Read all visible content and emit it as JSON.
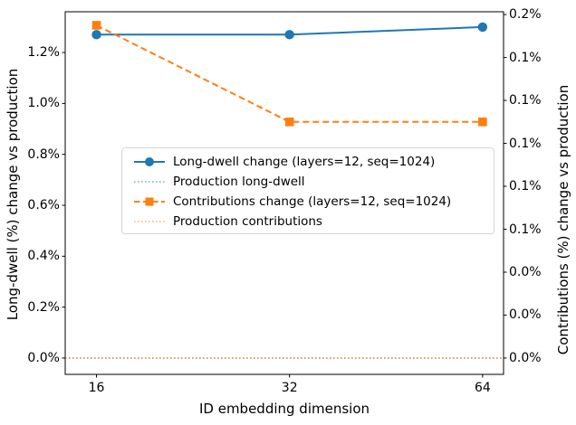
{
  "chart_data": {
    "type": "line",
    "title": "",
    "xlabel": "ID embedding dimension",
    "ylabel_left": "Long-dwell (%) change vs production",
    "ylabel_right": "Contributions (%) change vs production",
    "grid": false,
    "legend_position": "center-left",
    "x_axis": {
      "scale": "log2",
      "lim": [
        14.3,
        69.0
      ],
      "ticks": [
        16,
        32,
        64
      ],
      "tick_labels": [
        "16",
        "32",
        "64"
      ]
    },
    "y_axis_left": {
      "lim": [
        -0.064,
        1.36
      ],
      "ticks": [
        0.0,
        0.2,
        0.4,
        0.6,
        0.8,
        1.0,
        1.2
      ],
      "tick_labels": [
        "0.0%",
        "0.2%",
        "0.4%",
        "0.6%",
        "0.8%",
        "1.0%",
        "1.2%"
      ]
    },
    "y_axis_right": {
      "lim": [
        -0.0076,
        0.1613
      ],
      "ticks": [
        0.0,
        0.02,
        0.04,
        0.06,
        0.08,
        0.1,
        0.12,
        0.14,
        0.16
      ],
      "tick_labels": [
        "0.0%",
        "0.0%",
        "0.0%",
        "0.1%",
        "0.1%",
        "0.1%",
        "0.1%",
        "0.1%",
        "0.2%"
      ]
    },
    "x": [
      16,
      32,
      64
    ],
    "series": [
      {
        "key": "long-dwell-change",
        "name": "Long-dwell change (layers=12, seq=1024)",
        "axis": "left",
        "values": [
          1.27,
          1.27,
          1.3
        ],
        "color": "#1f77b4",
        "alpha": 1,
        "line": "solid",
        "marker": "circle",
        "span": "data"
      },
      {
        "key": "production-long-dwell",
        "name": "Production long-dwell",
        "axis": "left",
        "values": [
          0.0,
          0.0,
          0.0
        ],
        "color": "#1f77b4",
        "alpha": 0.6,
        "line": "dotted",
        "marker": "none",
        "span": "full"
      },
      {
        "key": "contributions-change",
        "name": "Contributions change (layers=12, seq=1024)",
        "axis": "right",
        "values": [
          0.155,
          0.11,
          0.11
        ],
        "color": "#ff7f0e",
        "alpha": 1,
        "line": "dashed",
        "marker": "square",
        "span": "data"
      },
      {
        "key": "production-contributions",
        "name": "Production contributions",
        "axis": "right",
        "values": [
          0.0,
          0.0,
          0.0
        ],
        "color": "#ff7f0e",
        "alpha": 0.6,
        "line": "dotted",
        "marker": "none",
        "span": "full"
      }
    ]
  },
  "colors": {
    "blue": "#1f77b4",
    "orange": "#ff7f0e",
    "axis": "#000000",
    "legend_border": "#d5d5d5",
    "background": "#ffffff"
  }
}
